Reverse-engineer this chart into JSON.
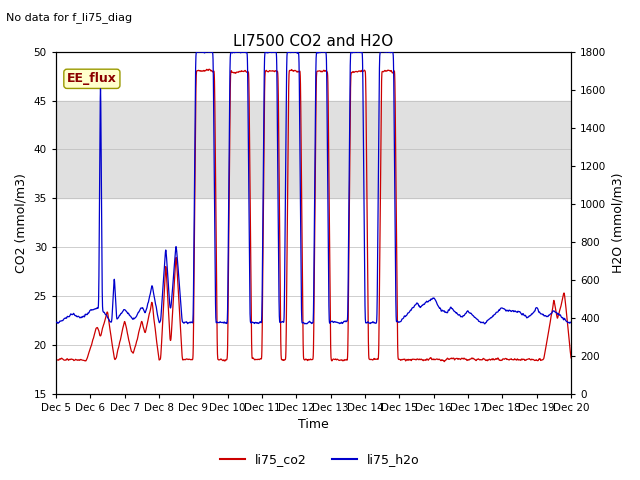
{
  "title": "LI7500 CO2 and H2O",
  "top_left_text": "No data for f_li75_diag",
  "annotation_text": "EE_flux",
  "xlabel": "Time",
  "ylabel_left": "CO2 (mmol/m3)",
  "ylabel_right": "H2O (mmol/m3)",
  "ylim_left": [
    15,
    50
  ],
  "ylim_right": [
    0,
    1800
  ],
  "yticks_left": [
    15,
    20,
    25,
    30,
    35,
    40,
    45,
    50
  ],
  "yticks_right": [
    0,
    200,
    400,
    600,
    800,
    1000,
    1200,
    1400,
    1600,
    1800
  ],
  "xticklabels": [
    "Dec 5",
    "Dec 6",
    "Dec 7",
    "Dec 8",
    "Dec 9",
    "Dec 10",
    "Dec 11",
    "Dec 12",
    "Dec 13",
    "Dec 14",
    "Dec 15",
    "Dec 16",
    "Dec 17",
    "Dec 18",
    "Dec 19",
    "Dec 20"
  ],
  "color_co2": "#cc0000",
  "color_h2o": "#0000cc",
  "legend_labels": [
    "li75_co2",
    "li75_h2o"
  ],
  "bg_band_color": "#e0e0e0",
  "bg_band_ranges": [
    [
      35,
      45
    ]
  ],
  "title_fontsize": 11,
  "axis_label_fontsize": 9,
  "tick_fontsize": 7.5,
  "legend_fontsize": 9,
  "annotation_fontsize": 9
}
